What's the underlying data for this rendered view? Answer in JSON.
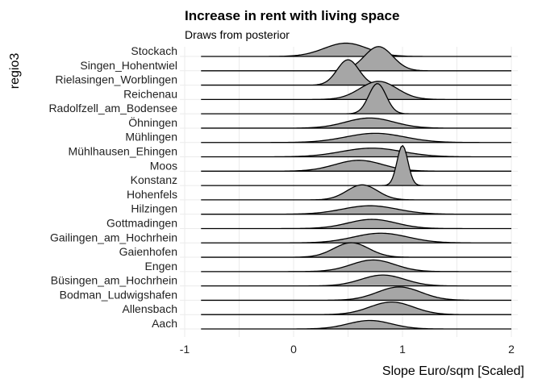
{
  "chart_data": {
    "type": "ridgeline",
    "title": "Increase in rent with living space",
    "subtitle": "Draws from posterior",
    "xlabel": "Slope Euro/sqm [Scaled]",
    "ylabel": "regio3",
    "xlim": [
      -1,
      2
    ],
    "xticks": [
      -1,
      0,
      1,
      2
    ],
    "grid": true,
    "fill_color": "#a6a6a6",
    "line_color": "#000000",
    "series": [
      {
        "name": "Stockach",
        "peaks": [
          {
            "mean": 0.48,
            "sd": 0.2,
            "height": 0.55
          }
        ]
      },
      {
        "name": "Singen_Hohentwiel",
        "peaks": [
          {
            "mean": 0.78,
            "sd": 0.13,
            "height": 1.0
          }
        ]
      },
      {
        "name": "Rielasingen_Worblingen",
        "peaks": [
          {
            "mean": 0.5,
            "sd": 0.1,
            "height": 1.05
          }
        ]
      },
      {
        "name": "Reichenau",
        "peaks": [
          {
            "mean": 0.78,
            "sd": 0.17,
            "height": 0.75
          }
        ]
      },
      {
        "name": "Radolfzell_am_Bodensee",
        "peaks": [
          {
            "mean": 0.77,
            "sd": 0.08,
            "height": 1.25
          }
        ]
      },
      {
        "name": "Öhningen",
        "peaks": [
          {
            "mean": 0.7,
            "sd": 0.22,
            "height": 0.42
          }
        ]
      },
      {
        "name": "Mühlingen",
        "peaks": [
          {
            "mean": 0.75,
            "sd": 0.27,
            "height": 0.38
          }
        ]
      },
      {
        "name": "Mühlhausen_Ehingen",
        "peaks": [
          {
            "mean": 0.72,
            "sd": 0.28,
            "height": 0.36
          }
        ]
      },
      {
        "name": "Moos",
        "peaks": [
          {
            "mean": 0.6,
            "sd": 0.22,
            "height": 0.45
          }
        ]
      },
      {
        "name": "Konstanz",
        "peaks": [
          {
            "mean": 1.0,
            "sd": 0.05,
            "height": 1.65
          }
        ]
      },
      {
        "name": "Hohenfels",
        "peaks": [
          {
            "mean": 0.63,
            "sd": 0.14,
            "height": 0.62
          }
        ]
      },
      {
        "name": "Hilzingen",
        "peaks": [
          {
            "mean": 0.7,
            "sd": 0.25,
            "height": 0.35
          }
        ]
      },
      {
        "name": "Gottmadingen",
        "peaks": [
          {
            "mean": 0.72,
            "sd": 0.22,
            "height": 0.38
          }
        ]
      },
      {
        "name": "Gailingen_am_Hochrhein",
        "peaks": [
          {
            "mean": 0.8,
            "sd": 0.25,
            "height": 0.4
          }
        ]
      },
      {
        "name": "Gaienhofen",
        "peaks": [
          {
            "mean": 0.53,
            "sd": 0.16,
            "height": 0.6
          }
        ]
      },
      {
        "name": "Engen",
        "peaks": [
          {
            "mean": 0.73,
            "sd": 0.2,
            "height": 0.48
          }
        ]
      },
      {
        "name": "Büsingen_am_Hochrhein",
        "peaks": [
          {
            "mean": 0.82,
            "sd": 0.2,
            "height": 0.45
          }
        ]
      },
      {
        "name": "Bodman_Ludwigshafen",
        "peaks": [
          {
            "mean": 0.97,
            "sd": 0.2,
            "height": 0.55
          }
        ]
      },
      {
        "name": "Allensbach",
        "peaks": [
          {
            "mean": 0.9,
            "sd": 0.2,
            "height": 0.52
          }
        ]
      },
      {
        "name": "Aach",
        "peaks": [
          {
            "mean": 0.7,
            "sd": 0.2,
            "height": 0.35
          }
        ]
      }
    ]
  }
}
